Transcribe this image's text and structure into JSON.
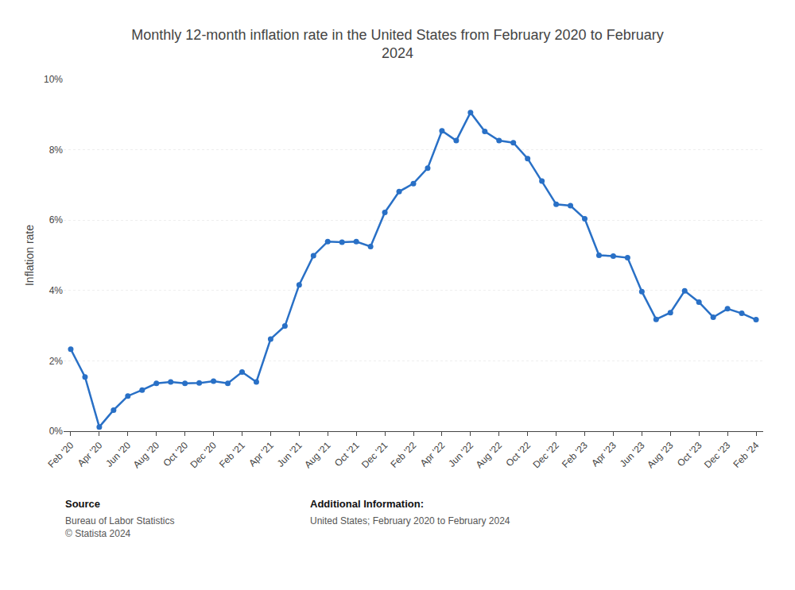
{
  "chart_data": {
    "type": "line",
    "title": "Monthly 12-month inflation rate in the United States from February 2020 to February\n2024",
    "ylabel": "Inflation rate",
    "categories": [
      "Feb '20",
      null,
      "Apr '20",
      null,
      "Jun '20",
      null,
      "Aug '20",
      null,
      "Oct '20",
      null,
      "Dec '20",
      null,
      "Feb '21",
      null,
      "Apr '21",
      null,
      "Jun '21",
      null,
      "Aug '21",
      null,
      "Oct '21",
      null,
      "Dec '21",
      null,
      "Feb '22",
      null,
      "Apr '22",
      null,
      "Jun '22",
      null,
      "Aug '22",
      null,
      "Oct '22",
      null,
      "Dec '22",
      null,
      "Feb '23",
      null,
      "Apr '23",
      null,
      "Jun '23",
      null,
      "Aug '23",
      null,
      "Oct '23",
      null,
      "Dec '23",
      null,
      "Feb '24"
    ],
    "values": [
      2.33,
      1.54,
      0.12,
      0.6,
      1.0,
      1.17,
      1.36,
      1.4,
      1.36,
      1.37,
      1.42,
      1.36,
      1.68,
      1.4,
      2.62,
      2.99,
      4.16,
      4.99,
      5.39,
      5.37,
      5.39,
      5.25,
      6.22,
      6.81,
      7.04,
      7.48,
      8.54,
      8.26,
      9.06,
      8.52,
      8.26,
      8.2,
      7.75,
      7.11,
      6.45,
      6.41,
      6.04,
      5.0,
      4.98,
      4.93,
      3.97,
      3.18,
      3.37,
      3.99,
      3.67,
      3.24,
      3.48,
      3.35,
      3.17
    ],
    "color": "#2970c6",
    "marker": "circle",
    "line_style": "solid",
    "ylim": [
      0,
      10
    ],
    "yticks": [
      {
        "value": 0,
        "label": "0%"
      },
      {
        "value": 2,
        "label": "2%"
      },
      {
        "value": 4,
        "label": "4%"
      },
      {
        "value": 6,
        "label": "6%"
      },
      {
        "value": 8,
        "label": "8%"
      },
      {
        "value": 10,
        "label": "10%"
      }
    ],
    "grid": true,
    "annotations": [
      "Source",
      "Bureau of Labor Statistics\n© Statista 2024",
      "Additional Information:",
      "United States; February 2020 to February 2024"
    ]
  }
}
